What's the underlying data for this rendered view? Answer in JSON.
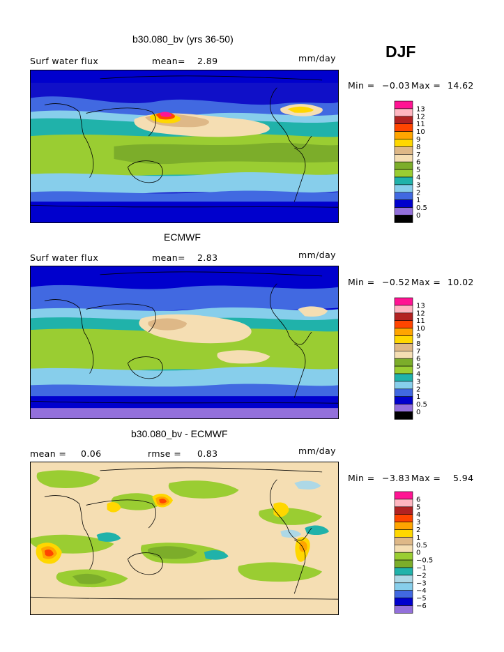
{
  "season": "DJF",
  "colors": {
    "abs": [
      "#9370db",
      "#0000cd",
      "#4169e1",
      "#87ceeb",
      "#20b2aa",
      "#9acd32",
      "#7cad2a",
      "#f5deb3",
      "#deb887",
      "#ffd700",
      "#ffa500",
      "#ff4500",
      "#b22222",
      "#ffb6c1",
      "#ff1493"
    ],
    "diff": [
      "#9370db",
      "#0000cd",
      "#4169e1",
      "#87ceeb",
      "#add8e6",
      "#20b2aa",
      "#7cad2a",
      "#9acd32",
      "#f5deb3",
      "#deb887",
      "#ffd700",
      "#ffa500",
      "#ff4500",
      "#b22222",
      "#ffb6c1",
      "#ff1493"
    ]
  },
  "chart_data": [
    {
      "type": "heatmap",
      "title": "b30.080_bv (yrs 36-50)",
      "left_label": "Surf water flux",
      "stat_label": "mean=",
      "stat_value": "2.89",
      "units": "mm/day",
      "min_max": {
        "min_label": "Min =",
        "min": "−0.03",
        "max_label": "Max =",
        "max": "14.62"
      },
      "colorbar_levels": [
        "13",
        "12",
        "11",
        "10",
        "9",
        "8",
        "7",
        "6",
        "5",
        "4",
        "3",
        "2",
        "1",
        "0.5",
        "0"
      ]
    },
    {
      "type": "heatmap",
      "title": "ECMWF",
      "left_label": "Surf water flux",
      "stat_label": "mean=",
      "stat_value": "2.83",
      "units": "mm/day",
      "min_max": {
        "min_label": "Min =",
        "min": "−0.52",
        "max_label": "Max =",
        "max": "10.02"
      },
      "colorbar_levels": [
        "13",
        "12",
        "11",
        "10",
        "9",
        "8",
        "7",
        "6",
        "5",
        "4",
        "3",
        "2",
        "1",
        "0.5",
        "0"
      ]
    },
    {
      "type": "heatmap",
      "title": "b30.080_bv - ECMWF",
      "left_label": "mean =",
      "left_value": "0.06",
      "stat_label": "rmse =",
      "stat_value": "0.83",
      "units": "mm/day",
      "min_max": {
        "min_label": "Min =",
        "min": "−3.83",
        "max_label": "Max =",
        "max": "5.94"
      },
      "colorbar_levels": [
        "6",
        "5",
        "4",
        "3",
        "2",
        "1",
        "0.5",
        "0",
        "−0.5",
        "−1",
        "−2",
        "−3",
        "−4",
        "−5",
        "−6"
      ]
    }
  ]
}
